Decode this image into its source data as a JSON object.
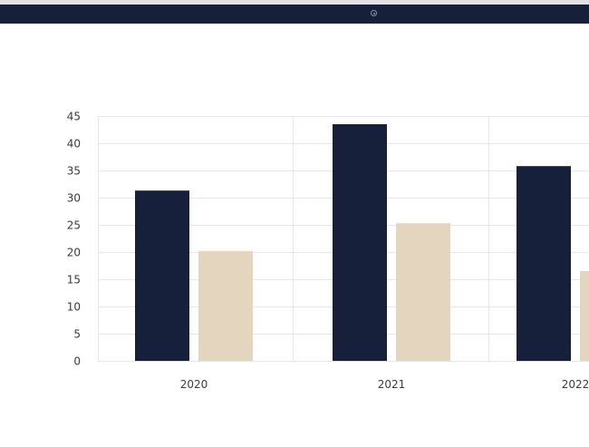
{
  "colors": {
    "header_bg": "#17203a",
    "series_a": "#17203a",
    "series_b": "#e4d5be",
    "grid": "#e6e6e6"
  },
  "header": {
    "icon": "radio-dot-icon"
  },
  "chart_data": {
    "type": "bar",
    "categories": [
      "2020",
      "2021",
      "2022"
    ],
    "series": [
      {
        "values": [
          31.3,
          43.5,
          35.8
        ]
      },
      {
        "values": [
          20.2,
          25.3,
          16.5
        ]
      }
    ],
    "yticks": [
      "0",
      "5",
      "10",
      "15",
      "20",
      "25",
      "30",
      "35",
      "40",
      "45"
    ],
    "ylim": [
      0,
      45
    ],
    "grid": true,
    "legend": "none"
  }
}
